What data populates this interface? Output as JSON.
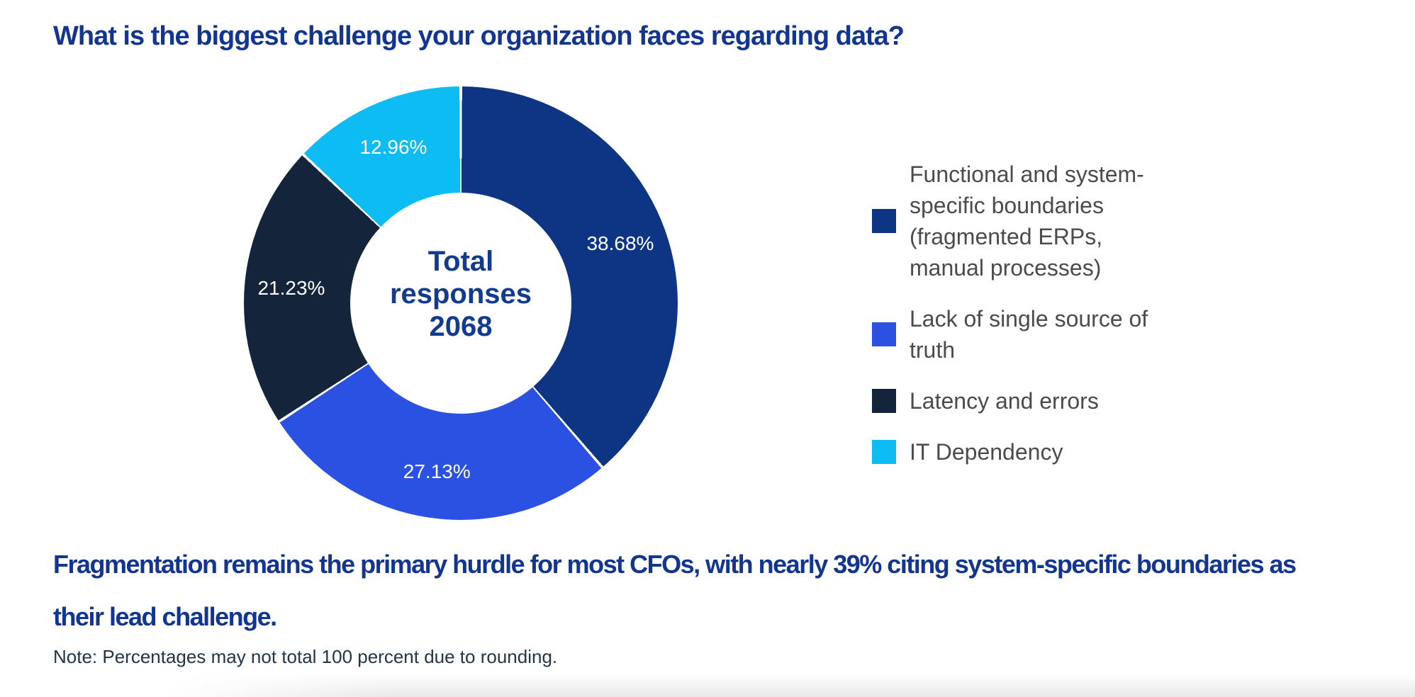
{
  "title": "What is the biggest challenge your organization faces regarding data?",
  "chart_data": {
    "type": "pie",
    "donut": true,
    "start_angle_deg": 0,
    "direction": "clockwise",
    "legend_position": "right",
    "slice_label_color": "#ffffff",
    "center_label": {
      "line1": "Total",
      "line2": "responses",
      "line3": "2068"
    },
    "total_responses": 2068,
    "series": [
      {
        "label": "Functional and system-specific boundaries (fragmented ERPs, manual processes)",
        "value": 38.68,
        "display": "38.68%",
        "color": "#0D3583"
      },
      {
        "label": "Lack of single source of truth",
        "value": 27.13,
        "display": "27.13%",
        "color": "#2B51E3"
      },
      {
        "label": "Latency and errors",
        "value": 21.23,
        "display": "21.23%",
        "color": "#13243B"
      },
      {
        "label": "IT Dependency",
        "value": 12.96,
        "display": "12.96%",
        "color": "#0CBCF2"
      }
    ]
  },
  "takeaway": {
    "line1": "Fragmentation remains the primary hurdle for most CFOs, with nearly 39% citing system-specific boundaries as",
    "line2": "their lead challenge."
  },
  "note": "Note: Percentages may not total 100 percent due to rounding."
}
